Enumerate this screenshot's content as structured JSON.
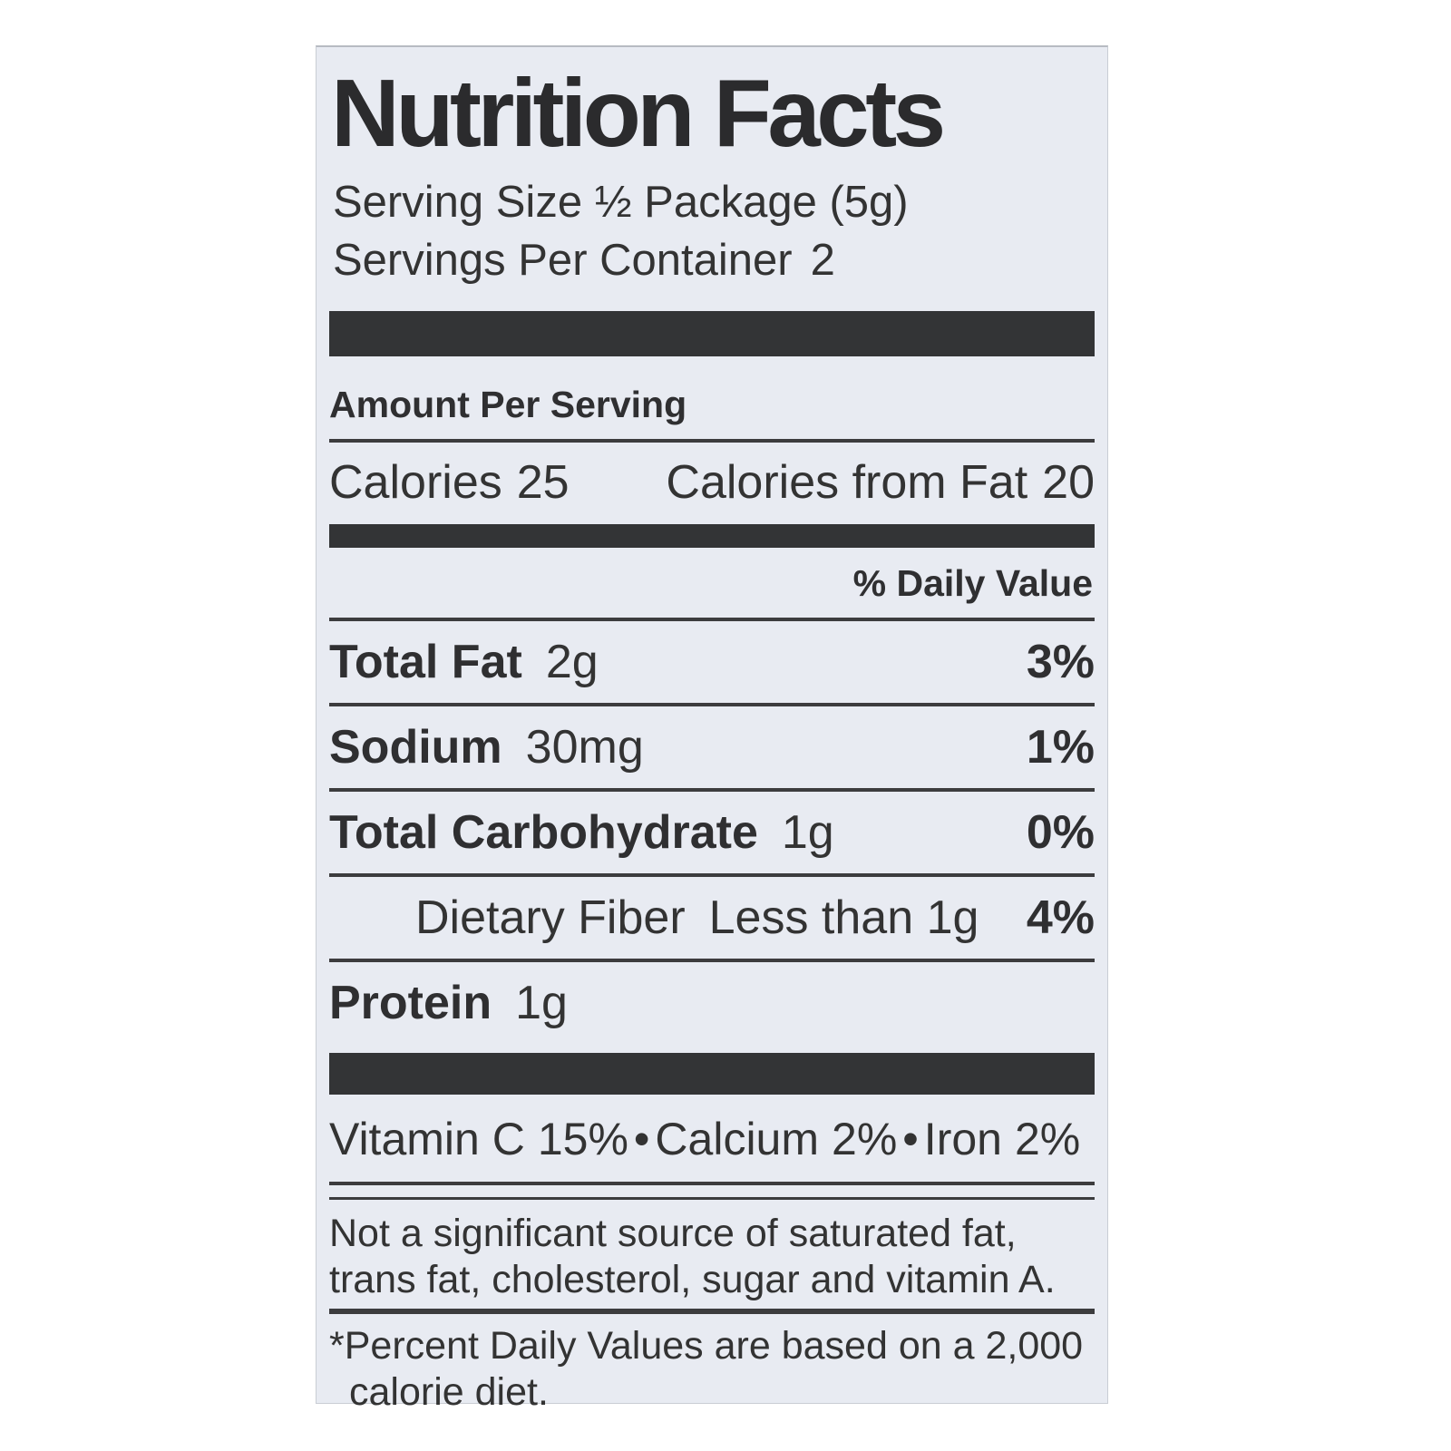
{
  "label": {
    "title": "Nutrition Facts",
    "serving_size": "Serving Size ½ Package (5g)",
    "servings_per_container": {
      "label": "Servings Per Container",
      "value": "2"
    },
    "amount_per_serving": "Amount Per Serving",
    "calories": {
      "label": "Calories",
      "value": "25"
    },
    "calories_from_fat": {
      "label": "Calories from Fat",
      "value": "20"
    },
    "daily_value_header": "% Daily Value",
    "rows": [
      {
        "name": "Total Fat",
        "amount": "2g",
        "daily_value": "3%"
      },
      {
        "name": "Sodium",
        "amount": "30mg",
        "daily_value": "1%"
      },
      {
        "name": "Total Carbohydrate",
        "amount": "1g",
        "daily_value": "0%"
      },
      {
        "name": "Dietary Fiber",
        "amount": "Less than 1g",
        "daily_value": "4%"
      },
      {
        "name": "Protein",
        "amount": "1g",
        "daily_value": ""
      }
    ],
    "vitamins": [
      {
        "name": "Vitamin C",
        "value": "15%"
      },
      {
        "name": "Calcium",
        "value": "2%"
      },
      {
        "name": "Iron",
        "value": "2%"
      }
    ],
    "vitamin_separator": "•",
    "not_significant_lines": [
      "Not a significant source of saturated fat,",
      "trans fat, cholesterol, sugar and vitamin A."
    ],
    "footnote_lines": [
      "*Percent Daily Values are based on a 2,000",
      "calorie diet."
    ],
    "colors": {
      "label_bg": "#e8ebf2",
      "bar": "#333436",
      "text": "#2e2e2e"
    }
  }
}
